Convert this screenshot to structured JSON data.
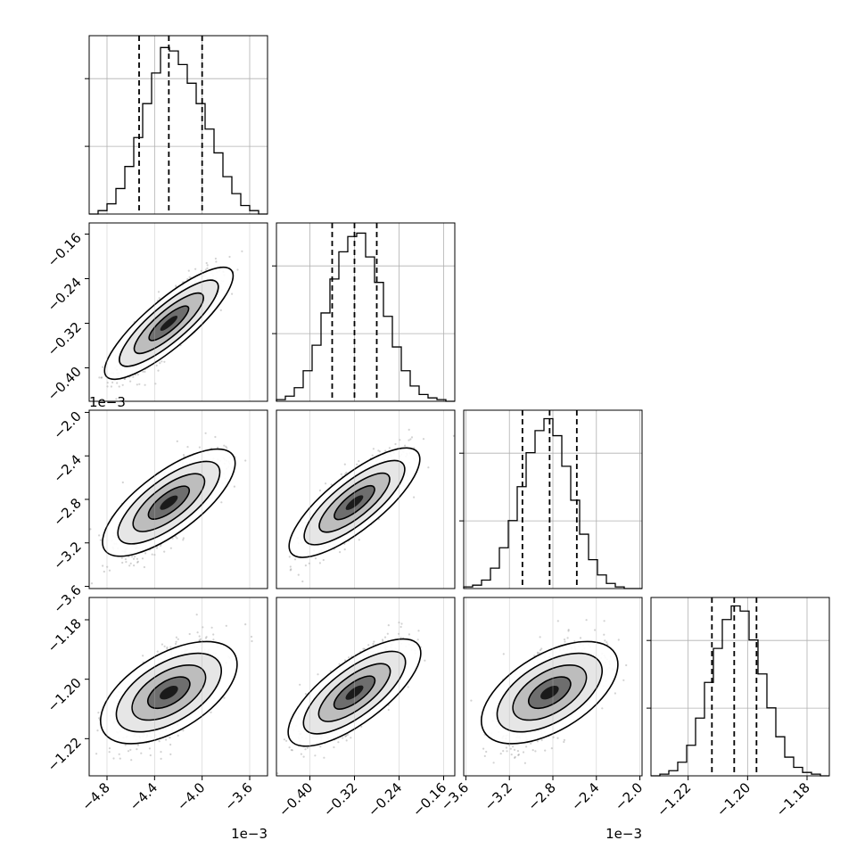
{
  "chart_data": [
    {
      "type": "histogram",
      "panel": "1,1",
      "x_ticks": [
        "−4.8",
        "−4.4",
        "−4.0",
        "−3.6"
      ],
      "x_range": [
        -4.95,
        -3.45
      ],
      "y_range": [
        0,
        1.05
      ],
      "quantiles": [
        -4.53,
        -4.28,
        -4.0
      ],
      "bin_edges": [
        -4.95,
        -4.875,
        -4.8,
        -4.725,
        -4.65,
        -4.575,
        -4.5,
        -4.425,
        -4.35,
        -4.275,
        -4.2,
        -4.125,
        -4.05,
        -3.975,
        -3.9,
        -3.825,
        -3.75,
        -3.675,
        -3.6,
        -3.525,
        -3.45
      ],
      "counts": [
        0,
        0.02,
        0.06,
        0.15,
        0.28,
        0.45,
        0.65,
        0.83,
        0.98,
        0.96,
        0.88,
        0.77,
        0.65,
        0.5,
        0.36,
        0.22,
        0.12,
        0.05,
        0.02,
        0.0
      ]
    },
    {
      "type": "histogram",
      "panel": "2,2",
      "x_ticks": [
        "−0.40",
        "−0.32",
        "−0.24",
        "−0.16"
      ],
      "x_range": [
        -0.46,
        -0.14
      ],
      "y_range": [
        0,
        1.05
      ],
      "quantiles": [
        -0.36,
        -0.32,
        -0.28
      ],
      "bin_edges": [
        -0.46,
        -0.444,
        -0.428,
        -0.412,
        -0.396,
        -0.38,
        -0.364,
        -0.348,
        -0.332,
        -0.316,
        -0.3,
        -0.284,
        -0.268,
        -0.252,
        -0.236,
        -0.22,
        -0.204,
        -0.188,
        -0.172,
        -0.156,
        -0.14
      ],
      "counts": [
        0.01,
        0.03,
        0.08,
        0.18,
        0.33,
        0.52,
        0.72,
        0.88,
        0.97,
        0.99,
        0.85,
        0.7,
        0.5,
        0.32,
        0.18,
        0.09,
        0.04,
        0.02,
        0.01,
        0.0
      ]
    },
    {
      "type": "histogram",
      "panel": "3,3",
      "x_ticks": [
        "−3.6",
        "−3.2",
        "−2.8",
        "−2.4",
        "−2.0"
      ],
      "x_range": [
        -3.62,
        -1.98
      ],
      "y_range": [
        0,
        1.05
      ],
      "quantiles": [
        -3.08,
        -2.83,
        -2.58
      ],
      "bin_edges": [
        -3.62,
        -3.538,
        -3.456,
        -3.374,
        -3.292,
        -3.21,
        -3.128,
        -3.046,
        -2.964,
        -2.882,
        -2.8,
        -2.718,
        -2.636,
        -2.554,
        -2.472,
        -2.39,
        -2.308,
        -2.226,
        -2.144,
        -2.062,
        -1.98
      ],
      "counts": [
        0.01,
        0.02,
        0.05,
        0.12,
        0.24,
        0.4,
        0.6,
        0.8,
        0.93,
        1.0,
        0.9,
        0.72,
        0.52,
        0.32,
        0.17,
        0.08,
        0.03,
        0.01,
        0.0,
        0.0
      ]
    },
    {
      "type": "histogram",
      "panel": "4,4",
      "x_ticks": [
        "−1.22",
        "−1.20",
        "−1.18"
      ],
      "x_range": [
        -1.2325,
        -1.1725
      ],
      "y_range": [
        0,
        1.05
      ],
      "quantiles": [
        -1.212,
        -1.2045,
        -1.197
      ],
      "bin_edges": [
        -1.2325,
        -1.2295,
        -1.2265,
        -1.2235,
        -1.2205,
        -1.2175,
        -1.2145,
        -1.2115,
        -1.2085,
        -1.2055,
        -1.2025,
        -1.1995,
        -1.1965,
        -1.1935,
        -1.1905,
        -1.1875,
        -1.1845,
        -1.1815,
        -1.1785,
        -1.1755,
        -1.1725
      ],
      "counts": [
        0.0,
        0.01,
        0.03,
        0.08,
        0.18,
        0.34,
        0.55,
        0.75,
        0.92,
        1.0,
        0.97,
        0.8,
        0.6,
        0.4,
        0.23,
        0.11,
        0.05,
        0.02,
        0.01,
        0.0
      ]
    },
    {
      "type": "scatter-density",
      "panel": "2,1",
      "y_ticks": [
        "−0.16",
        "−0.24",
        "−0.32",
        "−0.40"
      ],
      "x_range": [
        -4.95,
        -3.45
      ],
      "y_range": [
        -0.46,
        -0.14
      ],
      "mean": [
        -4.28,
        -0.32
      ],
      "corr": 0.85
    },
    {
      "type": "scatter-density",
      "panel": "3,1",
      "y_ticks": [
        "−2.0",
        "−2.4",
        "−2.8",
        "−3.2",
        "−3.6"
      ],
      "x_range": [
        -4.95,
        -3.45
      ],
      "y_range": [
        -3.62,
        -1.98
      ],
      "mean": [
        -4.28,
        -2.83
      ],
      "corr": 0.75
    },
    {
      "type": "scatter-density",
      "panel": "3,2",
      "x_range": [
        -0.46,
        -0.14
      ],
      "y_range": [
        -3.62,
        -1.98
      ],
      "mean": [
        -0.32,
        -2.83
      ],
      "corr": 0.8
    },
    {
      "type": "scatter-density",
      "panel": "4,1",
      "y_ticks": [
        "−1.18",
        "−1.20",
        "−1.22"
      ],
      "x_range": [
        -4.95,
        -3.45
      ],
      "y_range": [
        -1.2325,
        -1.1725
      ],
      "mean": [
        -4.28,
        -1.2045
      ],
      "corr": 0.6
    },
    {
      "type": "scatter-density",
      "panel": "4,2",
      "x_range": [
        -0.46,
        -0.14
      ],
      "y_range": [
        -1.2325,
        -1.1725
      ],
      "mean": [
        -0.32,
        -1.2045
      ],
      "corr": 0.75
    },
    {
      "type": "scatter-density",
      "panel": "4,3",
      "x_range": [
        -3.62,
        -1.98
      ],
      "y_range": [
        -1.2325,
        -1.1725
      ],
      "mean": [
        -2.83,
        -1.2045
      ],
      "corr": 0.6
    }
  ],
  "offset_labels": {
    "row2_y": "1e−3",
    "bottom_col1": "1e−3",
    "bottom_col3": "1e−3"
  },
  "colors": {
    "line": "#000000",
    "grid": "#b0b0b0",
    "scatter": "#7f7f7f"
  }
}
